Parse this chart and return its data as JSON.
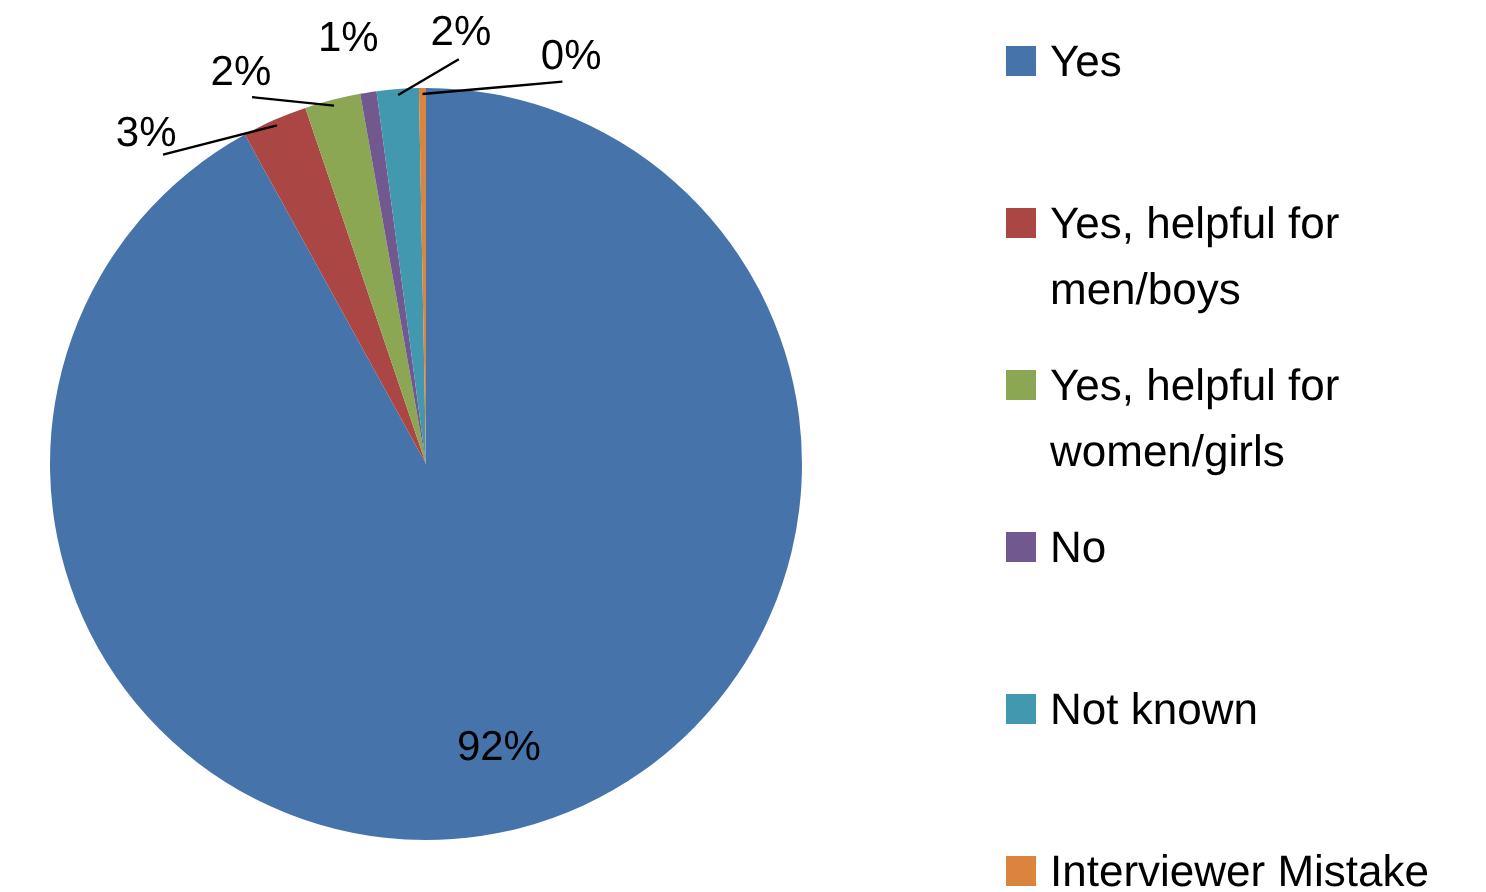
{
  "chart_data": {
    "type": "pie",
    "categories": [
      "Yes",
      "Yes, helpful for men/boys",
      "Yes, helpful for women/girls",
      "No",
      "Not known",
      "Interviewer Mistake"
    ],
    "values": [
      92.0,
      2.8,
      2.4,
      0.7,
      1.8,
      0.3
    ],
    "colors": [
      "#4674aa",
      "#aa4644",
      "#8ba753",
      "#71588f",
      "#4198af",
      "#db843d"
    ],
    "value_labels": [
      "92%",
      "3%",
      "2%",
      "1%",
      "2%",
      "0%"
    ],
    "legend": "right"
  }
}
